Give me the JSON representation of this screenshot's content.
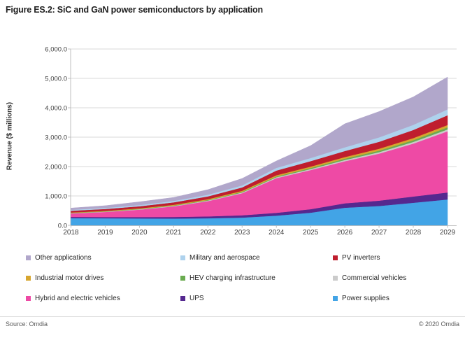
{
  "title": "Figure ES.2: SiC and GaN power semiconductors by application",
  "footer": {
    "source": "Source: Omdia",
    "copyright": "© 2020 Omdia"
  },
  "chart_data": {
    "type": "area",
    "stacked": true,
    "title": "Figure ES.2: SiC and GaN power semiconductors by application",
    "xlabel": "",
    "ylabel": "Revenue ($ millions)",
    "x": [
      2018,
      2019,
      2020,
      2021,
      2022,
      2023,
      2024,
      2025,
      2026,
      2027,
      2028,
      2029
    ],
    "ylim": [
      0,
      6000
    ],
    "y_tick_labels": [
      "0.0",
      "1,000.0",
      "2,000.0",
      "3,000.0",
      "4,000.0",
      "5,000.0",
      "6,000.0"
    ],
    "grid": true,
    "legend_position": "bottom",
    "axis_colors": {
      "grid": "#d9d9d9",
      "axis": "#bfbfbf",
      "tick_text": "#404040"
    },
    "series": [
      {
        "name": "Power supplies",
        "color": "#42a4e6",
        "values": [
          245,
          240,
          235,
          230,
          240,
          265,
          330,
          430,
          600,
          660,
          770,
          880
        ]
      },
      {
        "name": "UPS",
        "color": "#55288f",
        "values": [
          40,
          44,
          48,
          55,
          65,
          78,
          95,
          120,
          150,
          180,
          210,
          240
        ]
      },
      {
        "name": "Hybrid and electric vehicles",
        "color": "#ee4aa5",
        "values": [
          120,
          170,
          250,
          360,
          520,
          750,
          1180,
          1330,
          1430,
          1600,
          1800,
          2080
        ]
      },
      {
        "name": "Commercial vehicles",
        "color": "#cbcbcb",
        "values": [
          10,
          12,
          14,
          17,
          20,
          25,
          30,
          36,
          43,
          50,
          57,
          65
        ]
      },
      {
        "name": "HEV charging infrastructure",
        "color": "#6aab50",
        "values": [
          8,
          10,
          12,
          15,
          18,
          23,
          28,
          35,
          43,
          52,
          61,
          70
        ]
      },
      {
        "name": "Industrial motor drives",
        "color": "#d7a62f",
        "values": [
          15,
          17,
          20,
          24,
          28,
          34,
          42,
          50,
          58,
          65,
          72,
          80
        ]
      },
      {
        "name": "PV inverters",
        "color": "#bf1e2e",
        "values": [
          60,
          65,
          72,
          82,
          95,
          115,
          160,
          185,
          205,
          235,
          275,
          330
        ]
      },
      {
        "name": "Military and aerospace",
        "color": "#aed2ed",
        "values": [
          30,
          34,
          40,
          48,
          58,
          70,
          90,
          105,
          125,
          150,
          175,
          200
        ]
      },
      {
        "name": "Other applications",
        "color": "#b1a7cb",
        "values": [
          60,
          78,
          109,
          119,
          171,
          235,
          235,
          420,
          800,
          880,
          950,
          1100
        ]
      }
    ],
    "stacking_note": "series listed bottom-to-top; legend reads top-to-bottom as reverse of this order"
  }
}
